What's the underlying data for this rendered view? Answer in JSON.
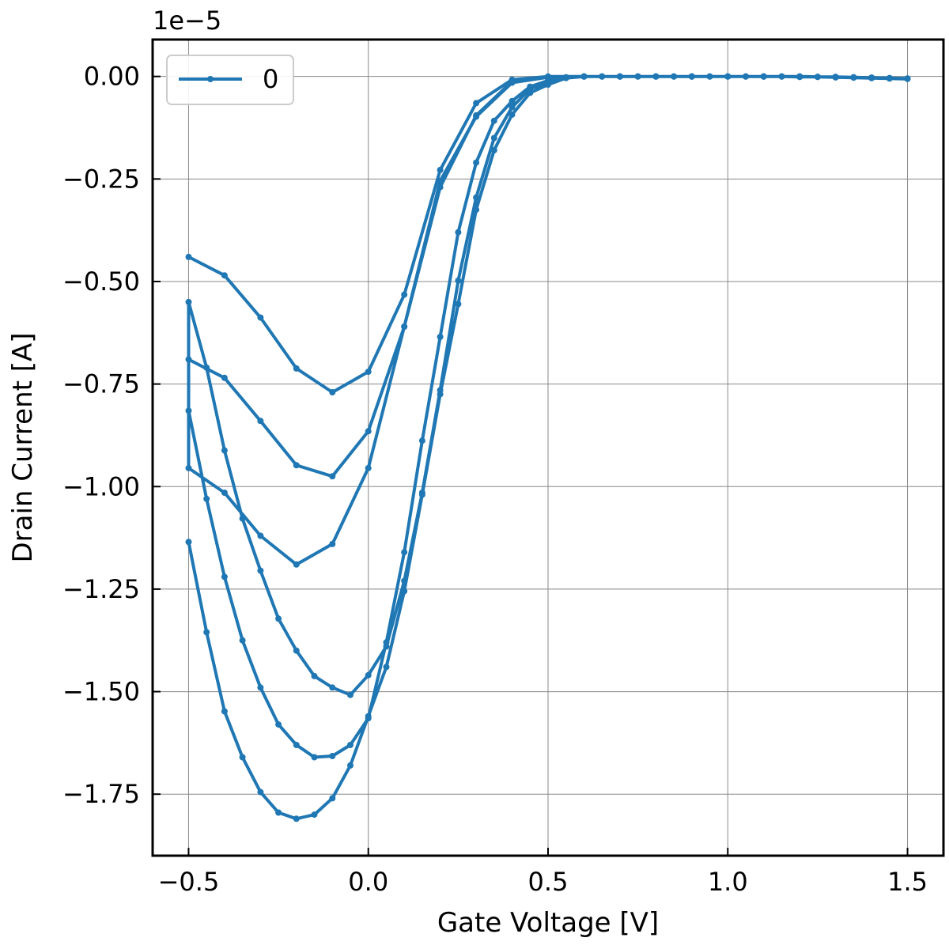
{
  "chart_data": {
    "type": "line",
    "title": "",
    "xlabel": "Gate Voltage [V]",
    "ylabel": "Drain Current [A]",
    "offset_text": "1e−5",
    "xlim": [
      -0.6,
      1.6
    ],
    "ylim": [
      -1.9,
      0.09
    ],
    "x_ticks": [
      -0.5,
      0.0,
      0.5,
      1.0,
      1.5
    ],
    "x_tick_labels": [
      "−0.5",
      "0.0",
      "0.5",
      "1.0",
      "1.5"
    ],
    "y_ticks": [
      0.0,
      -0.25,
      -0.5,
      -0.75,
      -1.0,
      -1.25,
      -1.5,
      -1.75
    ],
    "y_tick_labels": [
      "0.00",
      "−0.25",
      "−0.50",
      "−0.75",
      "−1.00",
      "−1.25",
      "−1.50",
      "−1.75"
    ],
    "y_scale_note": "values in units of 1e-5 A",
    "grid": true,
    "legend": {
      "placement": "top-left",
      "entries": [
        "0"
      ]
    },
    "color": "#1f77b4",
    "series": [
      {
        "name": "0",
        "x": [
          -0.5,
          -0.4,
          -0.3,
          -0.2,
          -0.1,
          0.0,
          0.1,
          0.2,
          0.3,
          0.4,
          0.5,
          0.6,
          0.7,
          0.8,
          0.9,
          1.0,
          1.1,
          1.2,
          1.3,
          1.4,
          1.5,
          1.45,
          1.4,
          1.35,
          1.3,
          1.25,
          1.2,
          1.15,
          1.1,
          1.05,
          1.0,
          0.95,
          0.9,
          0.85,
          0.8,
          0.75,
          0.7,
          0.65,
          0.6,
          0.55,
          0.5,
          0.45,
          0.4,
          0.35,
          0.3,
          0.25,
          0.2,
          0.15,
          0.1,
          0.05,
          0.0,
          -0.05,
          -0.1,
          -0.15,
          -0.2,
          -0.25,
          -0.3,
          -0.35,
          -0.4,
          -0.45,
          -0.5,
          -0.5,
          -0.4,
          -0.3,
          -0.2,
          -0.1,
          0.0,
          0.1,
          0.2,
          0.3,
          0.4,
          0.5,
          0.6,
          0.7,
          0.8,
          0.9,
          1.0,
          1.1,
          1.2,
          1.3,
          1.4,
          1.5,
          1.45,
          1.4,
          1.35,
          1.3,
          1.25,
          1.2,
          1.15,
          1.1,
          1.05,
          1.0,
          0.95,
          0.9,
          0.85,
          0.8,
          0.75,
          0.7,
          0.65,
          0.6,
          0.55,
          0.5,
          0.45,
          0.4,
          0.35,
          0.3,
          0.25,
          0.2,
          0.15,
          0.1,
          0.05,
          0.0,
          -0.05,
          -0.1,
          -0.15,
          -0.2,
          -0.25,
          -0.3,
          -0.35,
          -0.4,
          -0.45,
          -0.5,
          -0.5,
          -0.4,
          -0.3,
          -0.2,
          -0.1,
          0.0,
          0.1,
          0.2,
          0.3,
          0.4,
          0.5,
          0.6,
          0.7,
          0.8,
          0.9,
          1.0,
          1.1,
          1.2,
          1.3,
          1.4,
          1.5,
          1.45,
          1.4,
          1.35,
          1.3,
          1.25,
          1.2,
          1.15,
          1.1,
          1.05,
          1.0,
          0.95,
          0.9,
          0.85,
          0.8,
          0.75,
          0.7,
          0.65,
          0.6,
          0.55,
          0.5,
          0.45,
          0.4,
          0.35,
          0.3,
          0.25,
          0.2,
          0.15,
          0.1,
          0.05,
          0.0,
          -0.05,
          -0.1,
          -0.15,
          -0.2,
          -0.25,
          -0.3,
          -0.35,
          -0.4,
          -0.45,
          -0.5
        ],
        "y": [
          -0.44,
          -0.485,
          -0.588,
          -0.712,
          -0.77,
          -0.72,
          -0.532,
          -0.228,
          -0.065,
          -0.008,
          0.0,
          0.0,
          0.0,
          0.0,
          0.0,
          0.0,
          0.0,
          0.0,
          -0.002,
          -0.003,
          -0.005,
          -0.004,
          -0.003,
          -0.002,
          -0.001,
          -0.001,
          -0.001,
          0.0,
          0.0,
          0.0,
          0.0,
          0.0,
          0.0,
          0.0,
          0.0,
          0.0,
          0.0,
          0.0,
          0.0,
          -0.002,
          -0.01,
          -0.025,
          -0.06,
          -0.108,
          -0.21,
          -0.38,
          -0.635,
          -0.888,
          -1.16,
          -1.38,
          -1.565,
          -1.63,
          -1.657,
          -1.66,
          -1.63,
          -1.58,
          -1.49,
          -1.375,
          -1.22,
          -1.03,
          -0.815,
          -0.69,
          -0.735,
          -0.84,
          -0.948,
          -0.975,
          -0.865,
          -0.61,
          -0.255,
          -0.098,
          -0.015,
          -0.002,
          0.0,
          0.0,
          0.0,
          0.0,
          0.0,
          0.0,
          0.0,
          -0.002,
          -0.003,
          -0.005,
          -0.004,
          -0.003,
          -0.002,
          -0.001,
          -0.001,
          -0.001,
          0.0,
          0.0,
          0.0,
          0.0,
          0.0,
          0.0,
          0.0,
          0.0,
          0.0,
          0.0,
          0.0,
          0.0,
          -0.003,
          -0.015,
          -0.03,
          -0.075,
          -0.15,
          -0.295,
          -0.498,
          -0.765,
          -1.015,
          -1.23,
          -1.39,
          -1.46,
          -1.508,
          -1.49,
          -1.462,
          -1.4,
          -1.322,
          -1.205,
          -1.078,
          -0.912,
          -0.71,
          -0.55,
          -0.955,
          -1.015,
          -1.12,
          -1.19,
          -1.14,
          -0.955,
          -0.61,
          -0.27,
          -0.095,
          -0.012,
          -0.002,
          0.0,
          0.0,
          0.0,
          0.0,
          0.0,
          0.0,
          0.0,
          -0.002,
          -0.004,
          -0.006,
          -0.005,
          -0.004,
          -0.003,
          -0.002,
          -0.001,
          -0.001,
          0.0,
          0.0,
          0.0,
          0.0,
          0.0,
          0.0,
          0.0,
          0.0,
          0.0,
          0.0,
          0.0,
          0.0,
          -0.004,
          -0.02,
          -0.04,
          -0.093,
          -0.18,
          -0.325,
          -0.555,
          -0.775,
          -1.02,
          -1.255,
          -1.44,
          -1.56,
          -1.68,
          -1.76,
          -1.8,
          -1.81,
          -1.795,
          -1.745,
          -1.66,
          -1.548,
          -1.355,
          -1.135
        ]
      }
    ]
  }
}
